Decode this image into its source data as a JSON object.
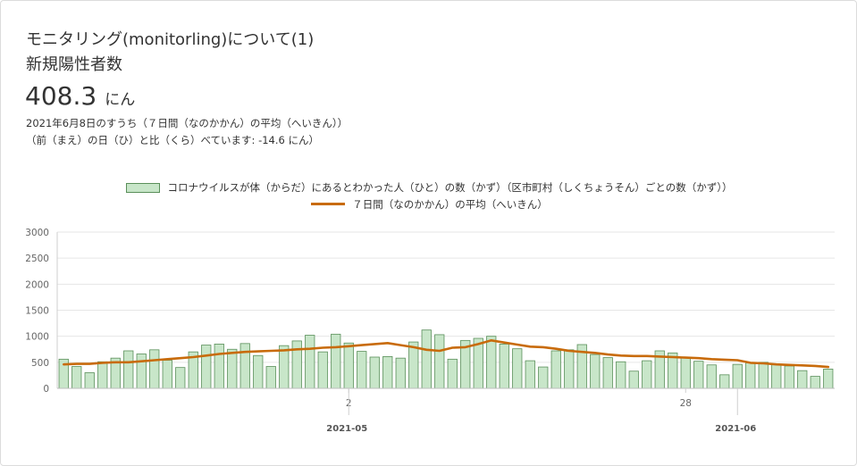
{
  "header": {
    "title": "モニタリング(monitorling)について(1)",
    "subtitle": "新規陽性者数",
    "value": "408.3",
    "unit": "にん",
    "note_date": "2021年6月8日のすうち（７日間（なのかかん）の平均（へいきん））",
    "note_compare": "（前（まえ）の日（ひ）と比（くら）べています: -14.6 にん）"
  },
  "colors": {
    "bar_fill": "#c8e6c9",
    "bar_stroke": "#5a8f5a",
    "line": "#c86b0b"
  },
  "chart_data": {
    "type": "bar",
    "legend": [
      "コロナウイルスが体（からだ）にあるとわかった人（ひと）の数（かず）（区市町村（しくちょうそん）ごとの数（かず））",
      "７日間（なのかかん）の平均（へいきん）"
    ],
    "ylim": [
      0,
      3000
    ],
    "yticks": [
      0,
      500,
      1000,
      1500,
      2000,
      2500,
      3000
    ],
    "xtick_labels": [
      {
        "label": "2",
        "index": 22
      },
      {
        "label": "28",
        "index": 48
      }
    ],
    "xmajor_labels": [
      {
        "label": "2021-05",
        "index": 22
      },
      {
        "label": "2021-06",
        "index": 52
      }
    ],
    "series": [
      {
        "type": "bar",
        "values": [
          560,
          420,
          300,
          510,
          580,
          720,
          660,
          740,
          540,
          400,
          700,
          830,
          850,
          750,
          860,
          630,
          420,
          820,
          910,
          1020,
          700,
          1040,
          870,
          710,
          600,
          610,
          580,
          890,
          1120,
          1030,
          560,
          920,
          960,
          1000,
          850,
          760,
          530,
          410,
          720,
          740,
          840,
          650,
          590,
          510,
          330,
          530,
          720,
          680,
          600,
          520,
          450,
          260,
          460,
          490,
          500,
          460,
          430,
          340,
          230,
          370
        ]
      },
      {
        "type": "line",
        "values": [
          460,
          470,
          470,
          490,
          500,
          500,
          520,
          540,
          560,
          580,
          600,
          630,
          660,
          680,
          700,
          710,
          720,
          730,
          750,
          760,
          780,
          790,
          810,
          830,
          850,
          870,
          830,
          790,
          740,
          720,
          780,
          790,
          850,
          920,
          880,
          840,
          800,
          790,
          760,
          720,
          700,
          680,
          650,
          630,
          620,
          620,
          610,
          600,
          590,
          580,
          560,
          550,
          540,
          490,
          480,
          460,
          450,
          440,
          430,
          410
        ]
      }
    ]
  }
}
